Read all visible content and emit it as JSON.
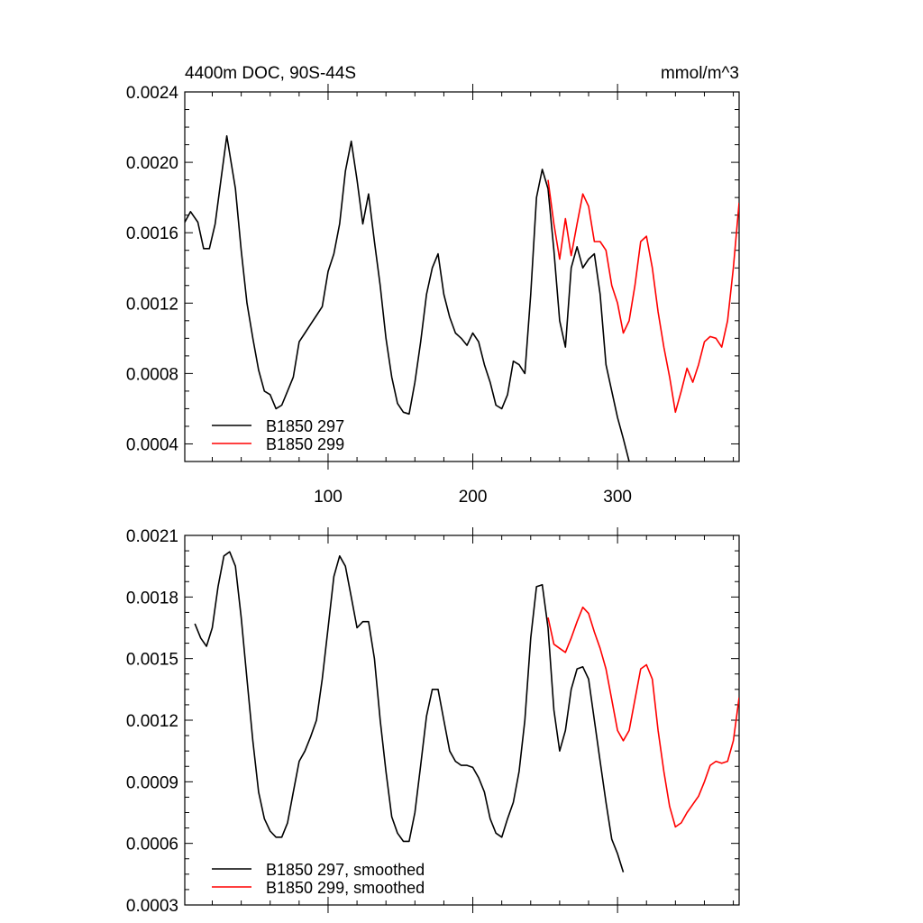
{
  "chart_data": [
    {
      "type": "line",
      "title": "4400m DOC, 90S-44S",
      "units": "mmol/m^3",
      "xlim": [
        1,
        384
      ],
      "ylim": [
        0.0003,
        0.0024
      ],
      "xticks": [
        100,
        200,
        300
      ],
      "xtick_labels": [
        "100",
        "200",
        "300"
      ],
      "yticks": [
        0.0004,
        0.0008,
        0.0012,
        0.0016,
        0.002,
        0.0024
      ],
      "ytick_labels": [
        "0.0004",
        "0.0008",
        "0.0012",
        "0.0016",
        "0.0020",
        "0.0024"
      ],
      "legend_position": "bottom-left",
      "series": [
        {
          "name": "B1850 297",
          "color": "#000000",
          "x": [
            1,
            5,
            10,
            14,
            18,
            22,
            26,
            30,
            33,
            36,
            40,
            44,
            48,
            52,
            56,
            60,
            64,
            68,
            72,
            76,
            80,
            84,
            88,
            92,
            96,
            100,
            104,
            108,
            112,
            116,
            120,
            124,
            128,
            132,
            136,
            140,
            144,
            148,
            152,
            156,
            160,
            164,
            168,
            172,
            176,
            180,
            184,
            188,
            192,
            196,
            200,
            204,
            208,
            212,
            216,
            220,
            224,
            228,
            232,
            236,
            240,
            244,
            248,
            252,
            256,
            260,
            264,
            268,
            272,
            276,
            280,
            284,
            288,
            292,
            296,
            300,
            304,
            308
          ],
          "y": [
            0.00166,
            0.00172,
            0.00166,
            0.00151,
            0.00151,
            0.00165,
            0.0019,
            0.00215,
            0.002,
            0.00185,
            0.0015,
            0.0012,
            0.001,
            0.00082,
            0.0007,
            0.00068,
            0.0006,
            0.00062,
            0.0007,
            0.00078,
            0.00098,
            0.00103,
            0.00108,
            0.00113,
            0.00118,
            0.00138,
            0.00148,
            0.00165,
            0.00195,
            0.00212,
            0.0019,
            0.00165,
            0.00182,
            0.00155,
            0.0013,
            0.001,
            0.00078,
            0.00063,
            0.00058,
            0.00057,
            0.00075,
            0.00098,
            0.00125,
            0.0014,
            0.00148,
            0.00125,
            0.00112,
            0.00103,
            0.001,
            0.00096,
            0.00103,
            0.00098,
            0.00085,
            0.00075,
            0.00062,
            0.0006,
            0.00068,
            0.00087,
            0.00085,
            0.0008,
            0.00125,
            0.0018,
            0.00196,
            0.00185,
            0.0015,
            0.0011,
            0.00095,
            0.0014,
            0.00152,
            0.0014,
            0.00145,
            0.00148,
            0.00125,
            0.00085,
            0.0007,
            0.00055,
            0.00043,
            0.0003
          ]
        },
        {
          "name": "B1850 299",
          "color": "#ff0000",
          "x": [
            252,
            256,
            260,
            264,
            268,
            272,
            276,
            280,
            284,
            288,
            292,
            296,
            300,
            304,
            308,
            312,
            316,
            320,
            324,
            328,
            332,
            336,
            340,
            344,
            348,
            352,
            356,
            360,
            364,
            368,
            372,
            376,
            380,
            384
          ],
          "y": [
            0.0019,
            0.00165,
            0.00145,
            0.00168,
            0.00147,
            0.00165,
            0.00182,
            0.00175,
            0.00155,
            0.00155,
            0.0015,
            0.0013,
            0.0012,
            0.00103,
            0.0011,
            0.0013,
            0.00155,
            0.00158,
            0.0014,
            0.00115,
            0.00095,
            0.00078,
            0.00058,
            0.0007,
            0.00083,
            0.00075,
            0.00085,
            0.00098,
            0.00101,
            0.001,
            0.00095,
            0.0011,
            0.0014,
            0.00177
          ]
        }
      ]
    },
    {
      "type": "line",
      "title": "",
      "xlim": [
        1,
        384
      ],
      "ylim": [
        0.0003,
        0.0021
      ],
      "xticks": [
        100,
        200,
        300
      ],
      "xtick_labels": [
        "",
        "",
        ""
      ],
      "yticks": [
        0.0003,
        0.0006,
        0.0009,
        0.0012,
        0.0015,
        0.0018,
        0.0021
      ],
      "ytick_labels": [
        "0.0003",
        "0.0006",
        "0.0009",
        "0.0012",
        "0.0015",
        "0.0018",
        "0.0021"
      ],
      "legend_position": "bottom-left",
      "series": [
        {
          "name": "B1850 297, smoothed",
          "color": "#000000",
          "x": [
            8,
            12,
            16,
            20,
            24,
            28,
            32,
            36,
            40,
            44,
            48,
            52,
            56,
            60,
            64,
            68,
            72,
            76,
            80,
            84,
            88,
            92,
            96,
            100,
            104,
            108,
            112,
            116,
            120,
            124,
            128,
            132,
            136,
            140,
            144,
            148,
            152,
            156,
            160,
            164,
            168,
            172,
            176,
            180,
            184,
            188,
            192,
            196,
            200,
            204,
            208,
            212,
            216,
            220,
            224,
            228,
            232,
            236,
            240,
            244,
            248,
            252,
            256,
            260,
            264,
            268,
            272,
            276,
            280,
            284,
            288,
            292,
            296,
            300,
            304
          ],
          "y": [
            0.00167,
            0.0016,
            0.00156,
            0.00165,
            0.00185,
            0.002,
            0.00202,
            0.00195,
            0.0017,
            0.0014,
            0.0011,
            0.00085,
            0.00072,
            0.00066,
            0.00063,
            0.00063,
            0.0007,
            0.00085,
            0.001,
            0.00105,
            0.00112,
            0.0012,
            0.0014,
            0.00165,
            0.0019,
            0.002,
            0.00195,
            0.0018,
            0.00165,
            0.00168,
            0.00168,
            0.0015,
            0.0012,
            0.00095,
            0.00073,
            0.00065,
            0.00061,
            0.00061,
            0.00075,
            0.00098,
            0.00122,
            0.00135,
            0.00135,
            0.0012,
            0.00105,
            0.001,
            0.00098,
            0.00098,
            0.00097,
            0.00092,
            0.00085,
            0.00072,
            0.00065,
            0.00063,
            0.00072,
            0.0008,
            0.00095,
            0.0012,
            0.0016,
            0.00185,
            0.00186,
            0.00165,
            0.00125,
            0.00105,
            0.00115,
            0.00135,
            0.00145,
            0.00146,
            0.0014,
            0.0012,
            0.001,
            0.0008,
            0.00062,
            0.00055,
            0.00046
          ]
        },
        {
          "name": "B1850 299, smoothed",
          "color": "#ff0000",
          "x": [
            252,
            256,
            260,
            264,
            268,
            272,
            276,
            280,
            284,
            288,
            292,
            296,
            300,
            304,
            308,
            312,
            316,
            320,
            324,
            328,
            332,
            336,
            340,
            344,
            348,
            352,
            356,
            360,
            364,
            368,
            372,
            376,
            380,
            384
          ],
          "y": [
            0.0017,
            0.00157,
            0.00155,
            0.00153,
            0.0016,
            0.00168,
            0.00175,
            0.00172,
            0.00163,
            0.00155,
            0.00145,
            0.0013,
            0.00115,
            0.0011,
            0.00115,
            0.0013,
            0.00145,
            0.00147,
            0.0014,
            0.00115,
            0.00095,
            0.00078,
            0.00068,
            0.0007,
            0.00075,
            0.00079,
            0.00083,
            0.0009,
            0.00098,
            0.001,
            0.00099,
            0.001,
            0.0011,
            0.00131
          ]
        }
      ]
    }
  ]
}
